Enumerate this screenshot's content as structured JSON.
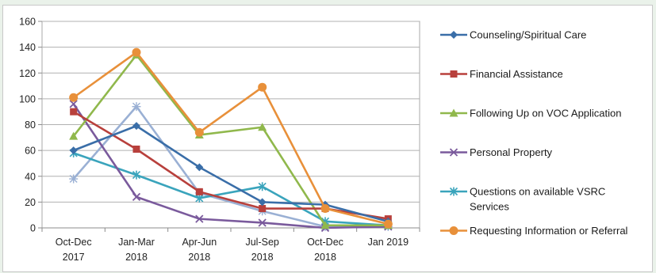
{
  "chart_data": {
    "type": "line",
    "title": "",
    "xlabel": "",
    "ylabel": "",
    "ylim": [
      0,
      160
    ],
    "yticks": [
      0,
      20,
      40,
      60,
      80,
      100,
      120,
      140,
      160
    ],
    "grid": true,
    "legend_position": "right",
    "categories": [
      [
        "Oct-Dec",
        "2017"
      ],
      [
        "Jan-Mar",
        "2018"
      ],
      [
        "Apr-Jun",
        "2018"
      ],
      [
        "Jul-Sep",
        "2018"
      ],
      [
        "Oct-Dec",
        "2018"
      ],
      [
        "Jan 2019"
      ]
    ],
    "series": [
      {
        "name": "Counseling/Spiritual Care",
        "color": "#3a6ea8",
        "marker": "diamond",
        "values": [
          60,
          79,
          47,
          20,
          18,
          5
        ]
      },
      {
        "name": "Financial Assistance",
        "color": "#b8403c",
        "marker": "square",
        "values": [
          90,
          61,
          28,
          15,
          15,
          7
        ]
      },
      {
        "name": "Following Up on VOC Application",
        "color": "#90b84c",
        "marker": "triangle",
        "values": [
          71,
          134,
          72,
          78,
          2,
          2
        ]
      },
      {
        "name": "Personal Property",
        "color": "#7a5a9c",
        "marker": "x",
        "values": [
          96,
          24,
          7,
          4,
          0,
          1
        ]
      },
      {
        "name": "Questions on available VSRC Services",
        "color": "#3aa4bc",
        "marker": "asterisk",
        "values": [
          58,
          41,
          23,
          32,
          5,
          2
        ]
      },
      {
        "name": "Requesting Information or Referral",
        "color": "#e8903a",
        "marker": "circle",
        "values": [
          101,
          136,
          74,
          109,
          15,
          3
        ]
      },
      {
        "name": "",
        "color": "#9ab0d4",
        "marker": "star",
        "values": [
          38,
          94,
          27,
          13,
          1,
          1
        ]
      }
    ],
    "legend": [
      {
        "lines": [
          "Counseling/Spiritual Care"
        ],
        "series": 0
      },
      {
        "lines": [
          "Financial Assistance"
        ],
        "series": 1
      },
      {
        "lines": [
          "Following Up on VOC Application"
        ],
        "series": 2
      },
      {
        "lines": [
          "Personal Property"
        ],
        "series": 3
      },
      {
        "lines": [
          "Questions on available VSRC",
          "Services"
        ],
        "series": 4
      },
      {
        "lines": [
          "Requesting Information or Referral"
        ],
        "series": 5
      }
    ]
  }
}
